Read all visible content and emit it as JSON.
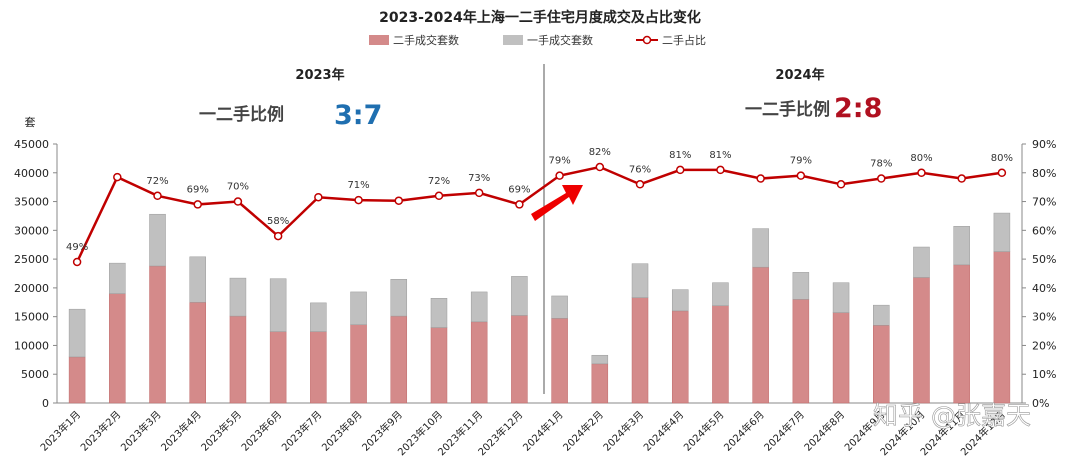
{
  "chart_data": {
    "type": "bar",
    "title": "2023-2024年上海一二手住宅月度成交及占比变化",
    "categories": [
      "2023年1月",
      "2023年2月",
      "2023年3月",
      "2023年4月",
      "2023年5月",
      "2023年6月",
      "2023年7月",
      "2023年8月",
      "2023年9月",
      "2023年10月",
      "2023年11月",
      "2023年12月",
      "2024年1月",
      "2024年2月",
      "2024年3月",
      "2024年4月",
      "2024年5月",
      "2024年6月",
      "2024年7月",
      "2024年8月",
      "2024年9月",
      "2024年10月",
      "2024年11月",
      "2024年12月"
    ],
    "series": [
      {
        "name": "二手成交套数",
        "type": "bar",
        "color": "#d48a8a",
        "values": [
          8000,
          19000,
          23800,
          17500,
          15100,
          12400,
          12400,
          13600,
          15100,
          13100,
          14100,
          15200,
          14700,
          6800,
          18300,
          16000,
          16900,
          23600,
          18000,
          15700,
          13500,
          21800,
          24000,
          26300
        ]
      },
      {
        "name": "一手成交套数",
        "type": "bar",
        "color": "#c0c0c0",
        "values": [
          8300,
          5300,
          9000,
          7900,
          6600,
          9200,
          5000,
          5700,
          6400,
          5100,
          5200,
          6800,
          3900,
          1500,
          5900,
          3700,
          4000,
          6700,
          4700,
          5200,
          3500,
          5300,
          6700,
          6700
        ]
      },
      {
        "name": "二手占比",
        "type": "line",
        "color": "#c00000",
        "axis": "right",
        "values": [
          49,
          78.5,
          72,
          69,
          70,
          58,
          71.5,
          70.5,
          70.3,
          72,
          73,
          69,
          79,
          82,
          76,
          81,
          81,
          78,
          79,
          76,
          78,
          80,
          78,
          80
        ],
        "labels": [
          "49%",
          "",
          "72%",
          "69%",
          "70%",
          "58%",
          "",
          "71%",
          "",
          "72%",
          "73%",
          "69%",
          "79%",
          "82%",
          "76%",
          "81%",
          "81%",
          "",
          "79%",
          "",
          "78%",
          "80%",
          "",
          "80%"
        ]
      }
    ],
    "ylabel": "套",
    "ylim": [
      0,
      45000
    ],
    "yticks": [
      "0",
      "5000",
      "10000",
      "15000",
      "20000",
      "25000",
      "30000",
      "35000",
      "40000",
      "45000"
    ],
    "y2lim": [
      0,
      90
    ],
    "y2ticks": [
      "0%",
      "10%",
      "20%",
      "30%",
      "40%",
      "50%",
      "60%",
      "70%",
      "80%",
      "90%"
    ],
    "legend_position": "top",
    "annotations": {
      "left_year": "2023年",
      "left_ratio_label": "一二手比例",
      "left_ratio_value": "3:7",
      "left_ratio_color": "#1f6fb0",
      "right_year": "2024年",
      "right_ratio_label": "一二手比例",
      "right_ratio_value": "2:8",
      "right_ratio_color": "#b01020"
    },
    "watermark": "知乎 @张嘉天"
  }
}
